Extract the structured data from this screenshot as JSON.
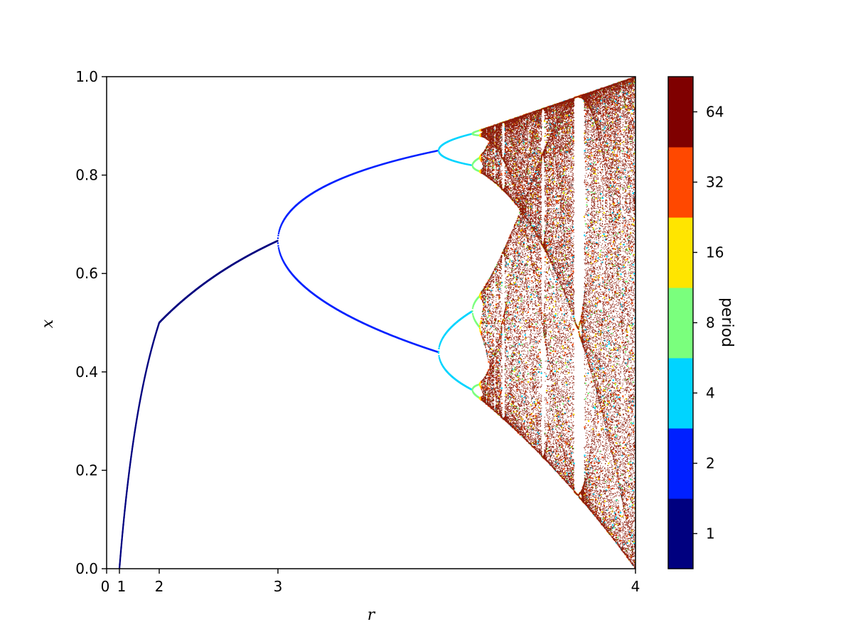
{
  "chart_data": {
    "type": "scatter",
    "title": "",
    "xlabel": "r",
    "ylabel": "x",
    "x_ticks": [
      "0",
      "1",
      "2",
      "3",
      "4"
    ],
    "y_ticks": [
      "0.0",
      "0.2",
      "0.4",
      "0.6",
      "0.8",
      "1.0"
    ],
    "xlim": [
      0,
      4
    ],
    "ylim": [
      0,
      1
    ],
    "x_scale": "piecewise: 0-1 and 1-2 compressed, 2-3 and 3-4 linear",
    "grid": false,
    "description_of_data": "Bifurcation diagram of the logistic map x -> r x (1 - x), points colored by period",
    "key_points": [
      {
        "r": 1.0,
        "x": 0.0
      },
      {
        "r": 2.0,
        "x": 0.5
      },
      {
        "r": 3.0,
        "x": 0.667
      },
      {
        "r": 3.449,
        "x": [
          0.44,
          0.85
        ]
      },
      {
        "r": 3.544,
        "x": [
          0.36,
          0.52,
          0.82,
          0.89
        ]
      },
      {
        "r": 3.83,
        "x": [
          0.16,
          0.5,
          0.96
        ]
      },
      {
        "r": 4.0,
        "x": [
          0.0,
          1.0
        ]
      }
    ],
    "colorbar": {
      "label": "period",
      "levels": [
        {
          "tick": "1",
          "color": "#00007f"
        },
        {
          "tick": "2",
          "color": "#0020ff"
        },
        {
          "tick": "4",
          "color": "#00d4ff"
        },
        {
          "tick": "8",
          "color": "#7aff7d"
        },
        {
          "tick": "16",
          "color": "#ffe500"
        },
        {
          "tick": "32",
          "color": "#ff4800"
        },
        {
          "tick": "64",
          "color": "#7f0000"
        }
      ]
    },
    "chaos_color": "#8b1a0a",
    "chaos_secondary_colors": [
      "#ff4800",
      "#ffe500",
      "#7aff7d",
      "#00d4ff"
    ]
  }
}
